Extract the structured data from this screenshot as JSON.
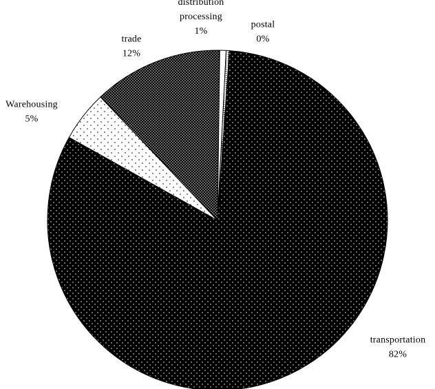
{
  "chart_data": {
    "type": "pie",
    "title": "",
    "start_angle_deg": -86,
    "direction": "clockwise",
    "slices": [
      {
        "label": "transportation",
        "lines": [
          "transportation"
        ],
        "percent_label": "82%",
        "value": 82.0,
        "pattern": "dark-dots"
      },
      {
        "label": "Warehousing",
        "lines": [
          "Warehousing"
        ],
        "percent_label": "5%",
        "value": 4.8,
        "pattern": "light-dots"
      },
      {
        "label": "trade",
        "lines": [
          "trade"
        ],
        "percent_label": "12%",
        "value": 12.3,
        "pattern": "dense-dots"
      },
      {
        "label": "distribution processing",
        "lines": [
          "distribution",
          "processing"
        ],
        "percent_label": "1%",
        "value": 0.6,
        "pattern": "white"
      },
      {
        "label": "postal",
        "lines": [
          "postal"
        ],
        "percent_label": "0%",
        "value": 0.3,
        "pattern": "medium-dots"
      }
    ],
    "colors": {
      "outline": "#000000",
      "dark_fill": "#000000",
      "dot_light": "#ffffff",
      "light_fill": "#ffffff",
      "dot_dark": "#000000"
    }
  }
}
